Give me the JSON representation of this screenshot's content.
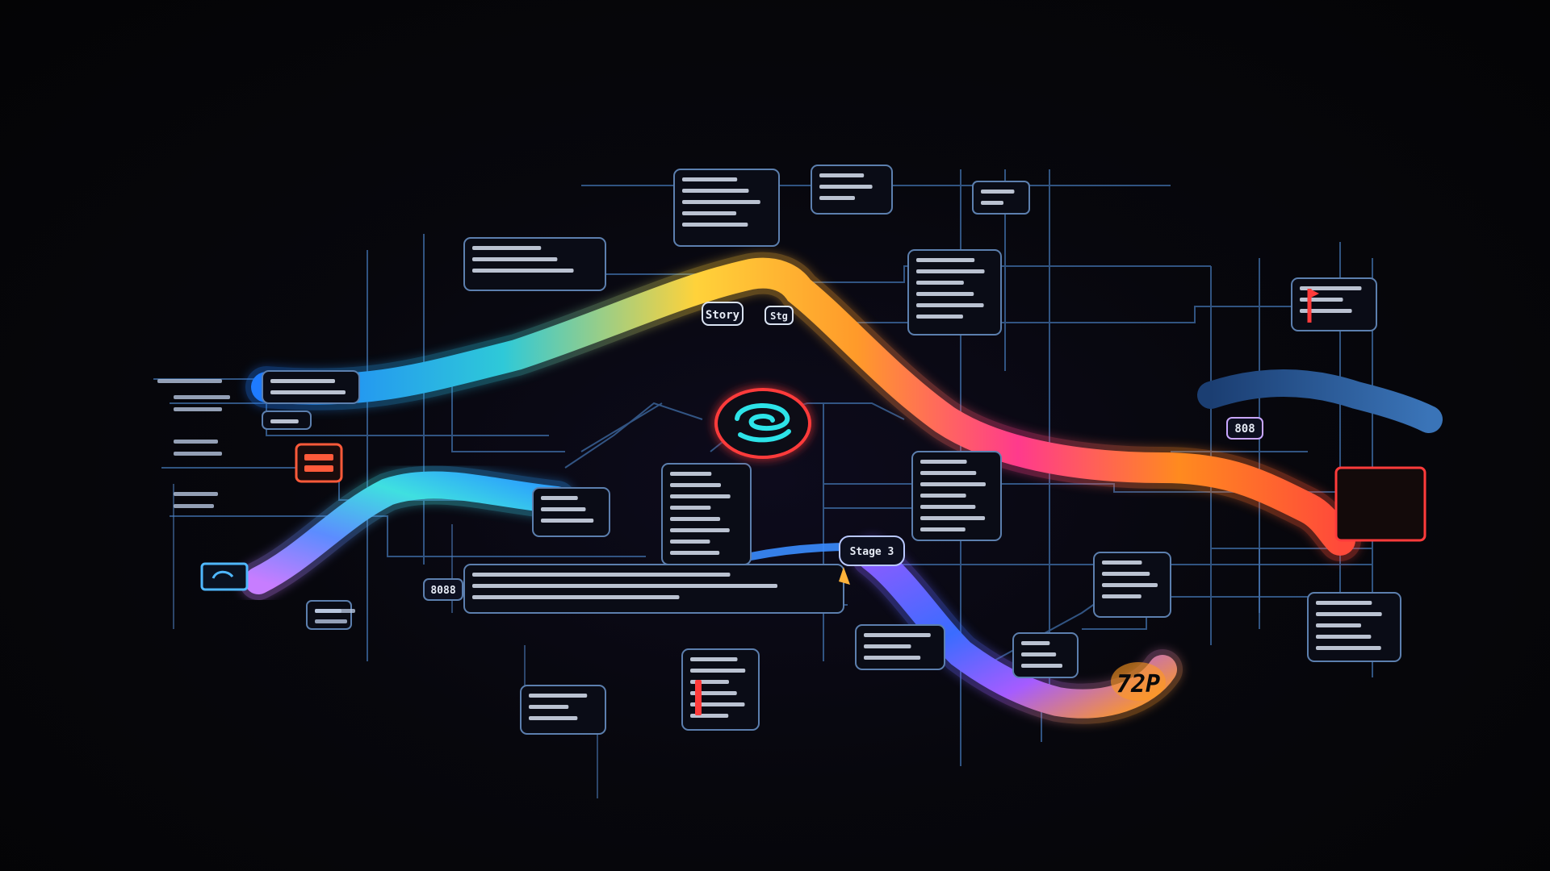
{
  "diagram": {
    "colors": {
      "background": "#050507",
      "grid_line": "#3f6ea8",
      "panel_fill": "#0a0c16",
      "panel_stroke": "#5c7fae",
      "panel_text": "#e6ebf5",
      "accent_red": "#ff3b3b",
      "accent_cyan": "#2de3e8",
      "accent_blue": "#3a8cff",
      "accent_yellow": "#ffd23a",
      "accent_orange": "#ff8a1f",
      "accent_pink": "#ff3a8c",
      "accent_purple": "#a55cff",
      "accent_navy": "#2a5a96"
    },
    "labels": {
      "ribbon_top_a": "Story",
      "ribbon_top_b": "Stg",
      "badge_right": "808",
      "badge_left": "8088",
      "bottom_right_tag": "72P",
      "mid_tag": "Stage 3"
    },
    "center_icon": "swirl-logo-icon",
    "left_icons": [
      "red-stack-icon",
      "monitor-icon"
    ],
    "right_icons": [
      "red-flag-icon",
      "red-card-icon"
    ]
  }
}
